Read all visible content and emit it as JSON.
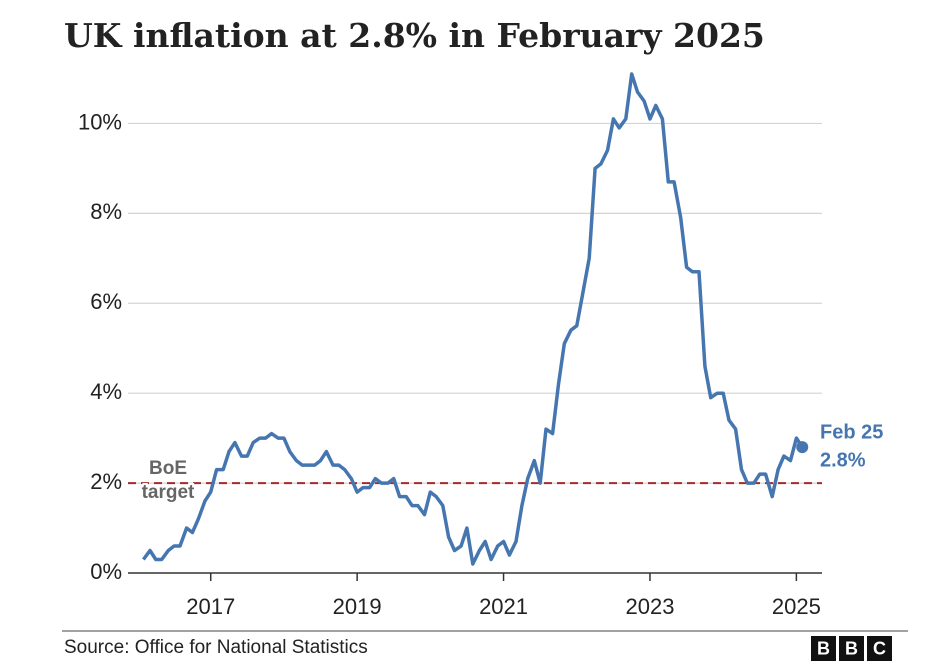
{
  "chart_data": {
    "type": "line",
    "title": "UK inflation at 2.8% in February 2025",
    "source": "Source: Office for National Statistics",
    "logo": [
      "B",
      "B",
      "C"
    ],
    "x": [
      2016.08,
      2016.17,
      2016.25,
      2016.33,
      2016.42,
      2016.5,
      2016.58,
      2016.67,
      2016.75,
      2016.83,
      2016.92,
      2017,
      2017.08,
      2017.17,
      2017.25,
      2017.33,
      2017.42,
      2017.5,
      2017.58,
      2017.67,
      2017.75,
      2017.83,
      2017.92,
      2018,
      2018.08,
      2018.17,
      2018.25,
      2018.33,
      2018.42,
      2018.5,
      2018.58,
      2018.67,
      2018.75,
      2018.83,
      2018.92,
      2019,
      2019.08,
      2019.17,
      2019.25,
      2019.33,
      2019.42,
      2019.5,
      2019.58,
      2019.67,
      2019.75,
      2019.83,
      2019.92,
      2020,
      2020.08,
      2020.17,
      2020.25,
      2020.33,
      2020.42,
      2020.5,
      2020.58,
      2020.67,
      2020.75,
      2020.83,
      2020.92,
      2021,
      2021.08,
      2021.17,
      2021.25,
      2021.33,
      2021.42,
      2021.5,
      2021.58,
      2021.67,
      2021.75,
      2021.83,
      2021.92,
      2022,
      2022.08,
      2022.17,
      2022.25,
      2022.33,
      2022.42,
      2022.5,
      2022.58,
      2022.67,
      2022.75,
      2022.83,
      2022.92,
      2023,
      2023.08,
      2023.17,
      2023.25,
      2023.33,
      2023.42,
      2023.5,
      2023.58,
      2023.67,
      2023.75,
      2023.83,
      2023.92,
      2024,
      2024.08,
      2024.17,
      2024.25,
      2024.33,
      2024.42,
      2024.5,
      2024.58,
      2024.67,
      2024.75,
      2024.83,
      2024.92,
      2025,
      2025.08
    ],
    "series": [
      {
        "color": "#4676b0",
        "values": [
          0.3,
          0.5,
          0.3,
          0.3,
          0.5,
          0.6,
          0.6,
          1.0,
          0.9,
          1.2,
          1.6,
          1.8,
          2.3,
          2.3,
          2.7,
          2.9,
          2.6,
          2.6,
          2.9,
          3.0,
          3.0,
          3.1,
          3.0,
          3.0,
          2.7,
          2.5,
          2.4,
          2.4,
          2.4,
          2.5,
          2.7,
          2.4,
          2.4,
          2.3,
          2.1,
          1.8,
          1.9,
          1.9,
          2.1,
          2.0,
          2.0,
          2.1,
          1.7,
          1.7,
          1.5,
          1.5,
          1.3,
          1.8,
          1.7,
          1.5,
          0.8,
          0.5,
          0.6,
          1.0,
          0.2,
          0.5,
          0.7,
          0.3,
          0.6,
          0.7,
          0.4,
          0.7,
          1.5,
          2.1,
          2.5,
          2.0,
          3.2,
          3.1,
          4.2,
          5.1,
          5.4,
          5.5,
          6.2,
          7.0,
          9.0,
          9.1,
          9.4,
          10.1,
          9.9,
          10.1,
          11.1,
          10.7,
          10.5,
          10.1,
          10.4,
          10.1,
          8.7,
          8.7,
          7.9,
          6.8,
          6.7,
          6.7,
          4.6,
          3.9,
          4.0,
          4.0,
          3.4,
          3.2,
          2.3,
          2.0,
          2.0,
          2.2,
          2.2,
          1.7,
          2.3,
          2.6,
          2.5,
          3.0,
          2.8
        ]
      }
    ],
    "last_point_label": [
      "Feb 25",
      "2.8%"
    ],
    "target": {
      "value": 2,
      "label": [
        "BoE",
        "target"
      ],
      "color": "#a52a2a"
    },
    "xlim": [
      2015.87,
      2025.35
    ],
    "xticks": [
      2017,
      2019,
      2021,
      2023,
      2025
    ],
    "ylim": [
      0,
      11.3
    ],
    "yticks": [
      {
        "value": 0,
        "label": "0%"
      },
      {
        "value": 2,
        "label": "2%"
      },
      {
        "value": 4,
        "label": "4%"
      },
      {
        "value": 6,
        "label": "6%"
      },
      {
        "value": 8,
        "label": "8%"
      },
      {
        "value": 10,
        "label": "10%"
      }
    ],
    "grid": true
  }
}
